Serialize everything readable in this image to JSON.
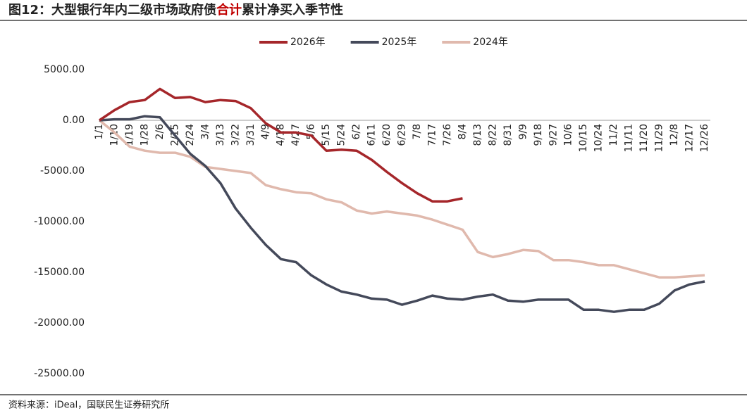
{
  "chart_data": {
    "type": "line",
    "title_parts": [
      "图12：大型银行年内二级市场政府债",
      "合计",
      "累计净买入季节性"
    ],
    "source": "资料来源：iDeal，国联民生证券研究所",
    "categories": [
      "1/1",
      "1/10",
      "1/19",
      "1/28",
      "2/6",
      "2/15",
      "2/24",
      "3/4",
      "3/13",
      "3/22",
      "3/31",
      "4/9",
      "4/18",
      "4/27",
      "5/6",
      "5/15",
      "5/24",
      "6/2",
      "6/11",
      "6/20",
      "6/29",
      "7/8",
      "7/17",
      "7/26",
      "8/4",
      "8/13",
      "8/22",
      "8/31",
      "9/9",
      "9/18",
      "9/27",
      "10/6",
      "10/15",
      "10/24",
      "11/2",
      "11/11",
      "11/20",
      "11/29",
      "12/8",
      "12/17",
      "12/26"
    ],
    "series": [
      {
        "name": "2026年",
        "color": "#a5262a",
        "values": [
          0,
          1000,
          1800,
          2000,
          3100,
          2200,
          2300,
          1800,
          2000,
          1900,
          1200,
          -300,
          -1200,
          -1200,
          -1500,
          -3000,
          -2900,
          -3000,
          -3900,
          -5100,
          -6200,
          -7200,
          -8000,
          -8000,
          -7700,
          null,
          null,
          null,
          null,
          null,
          null,
          null,
          null,
          null,
          null,
          null,
          null,
          null,
          null,
          null,
          null
        ]
      },
      {
        "name": "2025年",
        "color": "#44495a",
        "values": [
          0,
          100,
          100,
          400,
          300,
          -1500,
          -3300,
          -4500,
          -6200,
          -8700,
          -10600,
          -12300,
          -13700,
          -14000,
          -15300,
          -16200,
          -16900,
          -17200,
          -17600,
          -17700,
          -18200,
          -17800,
          -17300,
          -17600,
          -17700,
          -17400,
          -17200,
          -17800,
          -17900,
          -17700,
          -17700,
          -17700,
          -18700,
          -18700,
          -18900,
          -18700,
          -18700,
          -18100,
          -16800,
          -16200,
          -15900
        ]
      },
      {
        "name": "2024年",
        "color": "#e0b9ad",
        "values": [
          0,
          -1200,
          -2600,
          -3000,
          -3200,
          -3200,
          -3600,
          -4600,
          -4800,
          -5000,
          -5200,
          -6400,
          -6800,
          -7100,
          -7200,
          -7800,
          -8100,
          -8900,
          -9200,
          -9000,
          -9200,
          -9400,
          -9800,
          -10300,
          -10800,
          -13000,
          -13500,
          -13200,
          -12800,
          -12900,
          -13800,
          -13800,
          -14000,
          -14300,
          -14300,
          -14700,
          -15100,
          -15500,
          -15500,
          -15400,
          -15300
        ]
      }
    ],
    "ylim": [
      -25000,
      5000
    ],
    "yticks": [
      {
        "value": 5000,
        "label": "5000.00"
      },
      {
        "value": 0,
        "label": "0.00"
      },
      {
        "value": -5000,
        "label": "-5000.00"
      },
      {
        "value": -10000,
        "label": "-10000.00"
      },
      {
        "value": -15000,
        "label": "-15000.00"
      },
      {
        "value": -20000,
        "label": "-20000.00"
      },
      {
        "value": -25000,
        "label": "-25000.00"
      }
    ],
    "legend": "top"
  }
}
